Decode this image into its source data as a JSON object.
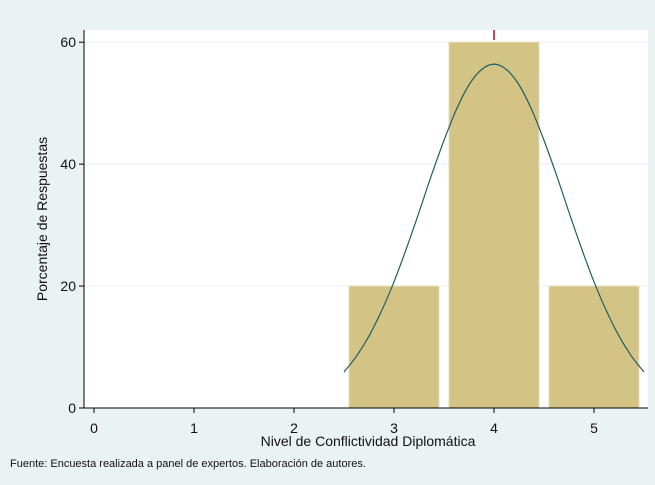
{
  "chart_data": {
    "type": "bar",
    "x": [
      3,
      4,
      5
    ],
    "values": [
      20,
      60,
      20
    ],
    "color": "#d3c486",
    "xlim": [
      -0.1,
      5.54
    ],
    "xticks": [
      0,
      1,
      2,
      3,
      4,
      5
    ],
    "ylim": [
      0,
      62
    ],
    "yticks": [
      0,
      20,
      40,
      60
    ],
    "grid": true,
    "xlabel": "Nivel de Conflictividad Diplomática",
    "ylabel": "Porcentaje de Respuestas",
    "note": "Fuente: Encuesta realizada a panel de expertos. Elaboración de autores.",
    "normal_curve": {
      "color": "#1f5f63",
      "x": [
        2.5,
        2.625,
        2.75,
        2.875,
        3,
        3.125,
        3.25,
        3.375,
        3.5,
        3.625,
        3.75,
        3.875,
        4,
        4.125,
        4.25,
        4.375,
        4.5,
        4.625,
        4.75,
        4.875,
        5,
        5.125,
        5.25,
        5.375,
        5.5
      ],
      "values": [
        5.9,
        8.5,
        11.8,
        15.9,
        20.7,
        26.2,
        32.1,
        38.2,
        43.9,
        49.0,
        53.0,
        55.5,
        56.4,
        55.5,
        53.0,
        49.0,
        43.9,
        38.2,
        32.1,
        26.2,
        20.7,
        15.9,
        11.8,
        8.5,
        5.9
      ]
    }
  }
}
